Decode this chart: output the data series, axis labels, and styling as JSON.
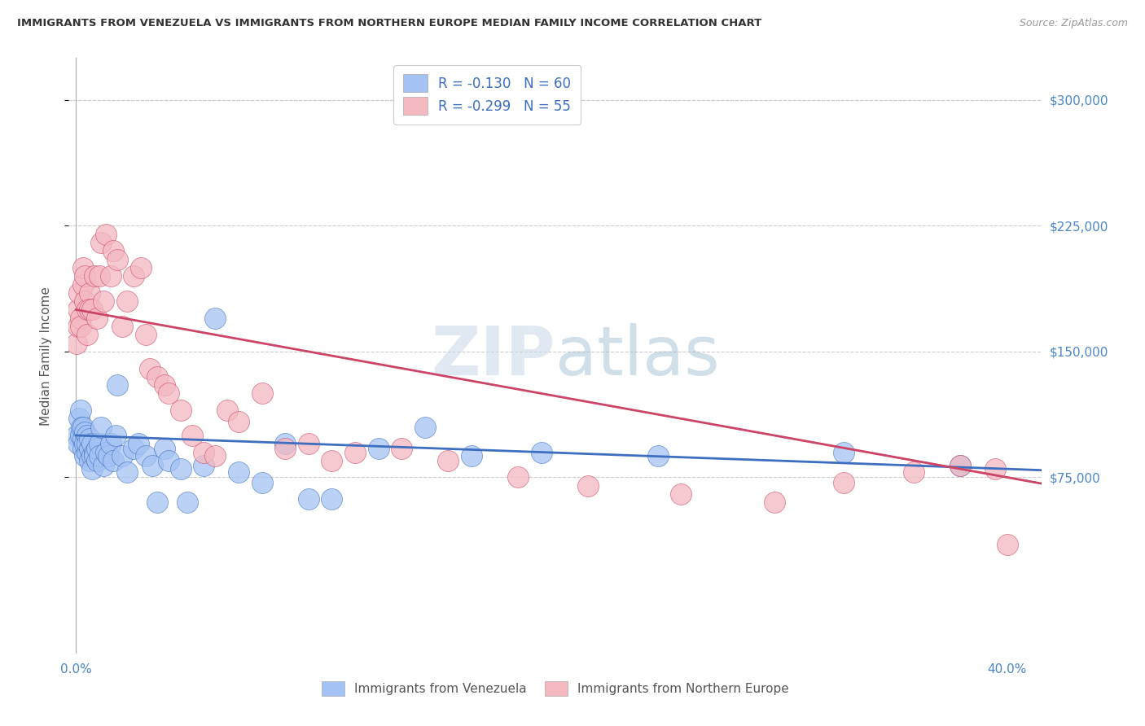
{
  "title": "IMMIGRANTS FROM VENEZUELA VS IMMIGRANTS FROM NORTHERN EUROPE MEDIAN FAMILY INCOME CORRELATION CHART",
  "source": "Source: ZipAtlas.com",
  "ylabel": "Median Family Income",
  "ymin": -30000,
  "ymax": 325000,
  "xmin": -0.003,
  "xmax": 0.415,
  "blue_color": "#a4c2f4",
  "pink_color": "#f4b8c1",
  "blue_line_color": "#3d6ebf",
  "pink_line_color": "#cc4466",
  "watermark_zip": "ZIP",
  "watermark_atlas": "atlas",
  "legend1_r": "R = -0.130",
  "legend1_n": "N = 60",
  "legend2_r": "R = -0.299",
  "legend2_n": "N = 55",
  "venezuela_x": [
    0.0005,
    0.001,
    0.0015,
    0.002,
    0.002,
    0.0025,
    0.003,
    0.003,
    0.003,
    0.004,
    0.004,
    0.004,
    0.005,
    0.005,
    0.005,
    0.006,
    0.006,
    0.006,
    0.007,
    0.007,
    0.007,
    0.008,
    0.008,
    0.009,
    0.009,
    0.01,
    0.01,
    0.011,
    0.012,
    0.013,
    0.014,
    0.015,
    0.016,
    0.017,
    0.018,
    0.02,
    0.022,
    0.025,
    0.027,
    0.03,
    0.033,
    0.035,
    0.038,
    0.04,
    0.045,
    0.048,
    0.055,
    0.06,
    0.07,
    0.08,
    0.09,
    0.1,
    0.11,
    0.13,
    0.15,
    0.17,
    0.2,
    0.25,
    0.33,
    0.38
  ],
  "venezuela_y": [
    100000,
    95000,
    110000,
    100000,
    115000,
    105000,
    92000,
    98000,
    105000,
    88000,
    95000,
    102000,
    90000,
    100000,
    95000,
    85000,
    92000,
    98000,
    88000,
    95000,
    80000,
    90000,
    88000,
    85000,
    92000,
    95000,
    88000,
    105000,
    82000,
    90000,
    88000,
    95000,
    85000,
    100000,
    130000,
    88000,
    78000,
    92000,
    95000,
    88000,
    82000,
    60000,
    92000,
    85000,
    80000,
    60000,
    82000,
    170000,
    78000,
    72000,
    95000,
    62000,
    62000,
    92000,
    105000,
    88000,
    90000,
    88000,
    90000,
    82000
  ],
  "northern_europe_x": [
    0.0005,
    0.001,
    0.001,
    0.0015,
    0.002,
    0.002,
    0.003,
    0.003,
    0.004,
    0.004,
    0.005,
    0.005,
    0.006,
    0.006,
    0.007,
    0.008,
    0.009,
    0.01,
    0.011,
    0.012,
    0.013,
    0.015,
    0.016,
    0.018,
    0.02,
    0.022,
    0.025,
    0.028,
    0.03,
    0.032,
    0.035,
    0.038,
    0.04,
    0.045,
    0.05,
    0.055,
    0.06,
    0.065,
    0.07,
    0.08,
    0.09,
    0.1,
    0.11,
    0.12,
    0.14,
    0.16,
    0.19,
    0.22,
    0.26,
    0.3,
    0.33,
    0.36,
    0.38,
    0.395,
    0.4
  ],
  "northern_europe_y": [
    155000,
    165000,
    175000,
    185000,
    170000,
    165000,
    190000,
    200000,
    180000,
    195000,
    175000,
    160000,
    185000,
    175000,
    175000,
    195000,
    170000,
    195000,
    215000,
    180000,
    220000,
    195000,
    210000,
    205000,
    165000,
    180000,
    195000,
    200000,
    160000,
    140000,
    135000,
    130000,
    125000,
    115000,
    100000,
    90000,
    88000,
    115000,
    108000,
    125000,
    92000,
    95000,
    85000,
    90000,
    92000,
    85000,
    75000,
    70000,
    65000,
    60000,
    72000,
    78000,
    82000,
    80000,
    35000
  ]
}
